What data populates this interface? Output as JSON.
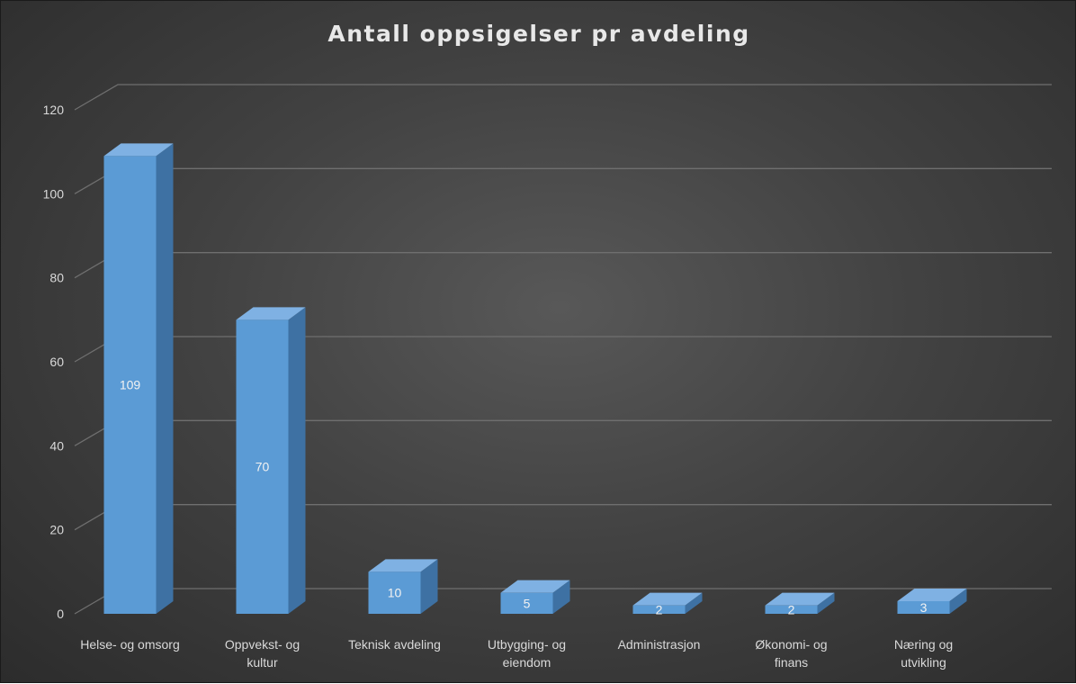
{
  "chart_data": {
    "type": "bar",
    "title": "Antall oppsigelser pr avdeling",
    "categories": [
      "Helse- og omsorg",
      "Oppvekst- og kultur",
      "Teknisk avdeling",
      "Utbygging- og eiendom",
      "Administrasjon",
      "Økonomi- og finans",
      "Næring og utvikling"
    ],
    "category_lines": [
      [
        "Helse- og omsorg"
      ],
      [
        "Oppvekst- og",
        "kultur"
      ],
      [
        "Teknisk avdeling"
      ],
      [
        "Utbygging- og",
        "eiendom"
      ],
      [
        "Administrasjon"
      ],
      [
        "Økonomi- og",
        "finans"
      ],
      [
        "Næring og",
        "utvikling"
      ]
    ],
    "values": [
      109,
      70,
      10,
      5,
      2,
      2,
      3
    ],
    "ylim": [
      0,
      120
    ],
    "yticks": [
      0,
      20,
      40,
      60,
      80,
      100,
      120
    ],
    "xlabel": "",
    "ylabel": "",
    "grid": true,
    "legend": "none",
    "style": "3d-column",
    "colors": {
      "bar_front": "#5b9bd5",
      "bar_side": "#3e71a3",
      "bar_top": "#7fb1e3",
      "grid": "#6f6f6f",
      "text": "#d9d9d9",
      "data_label": "#f2f2f2"
    }
  }
}
